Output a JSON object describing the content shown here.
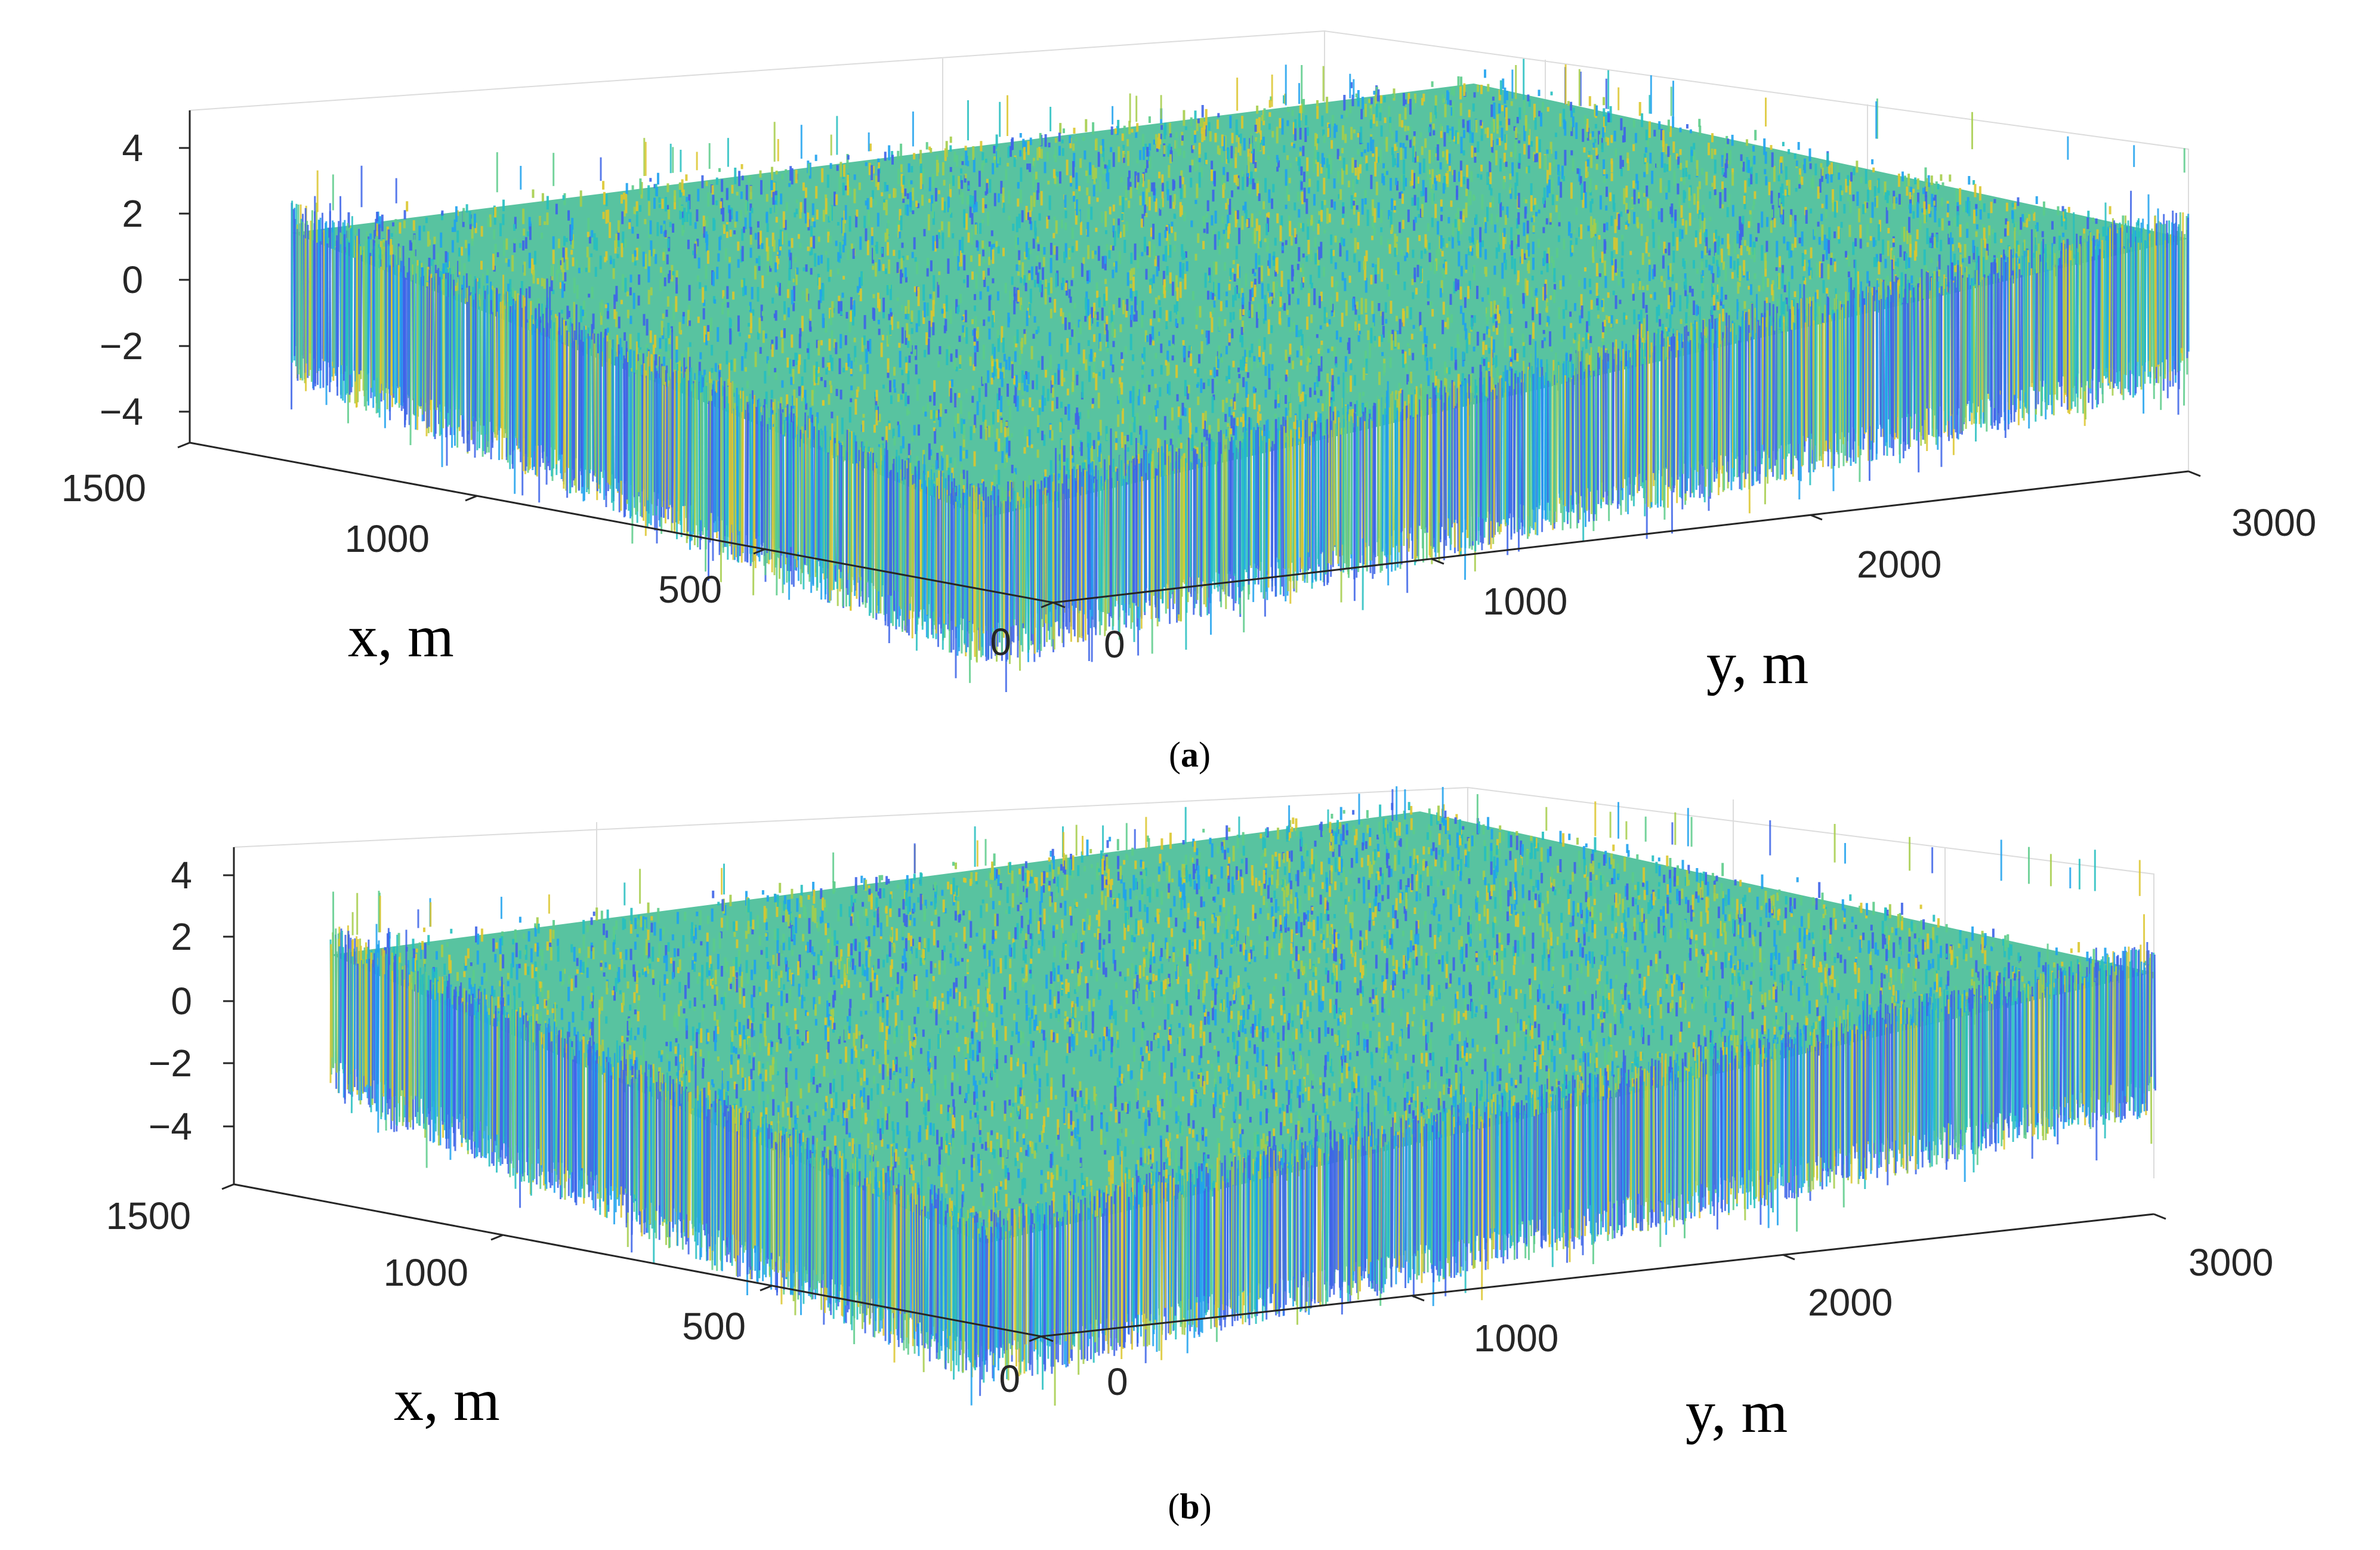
{
  "chart_data": [
    {
      "type": "surface",
      "panel_label": "a",
      "xlabel": "x, m",
      "ylabel": "y, m",
      "x_ticks": [
        "1500",
        "1000",
        "500",
        "0"
      ],
      "y_ticks": [
        "0",
        "1000",
        "2000",
        "3000"
      ],
      "z_ticks": [
        "4",
        "2",
        "0",
        "−2",
        "−4"
      ],
      "xlim": [
        0,
        1500
      ],
      "ylim": [
        0,
        3000
      ],
      "zlim": [
        -5,
        5
      ],
      "z_range_observed": [
        -4.5,
        4.5
      ],
      "grid": true,
      "colormap": [
        "#3e64e8",
        "#1fa2ee",
        "#26bfc0",
        "#5ccc8a",
        "#a5cd4a",
        "#dcc62e"
      ]
    },
    {
      "type": "surface",
      "panel_label": "b",
      "xlabel": "x, m",
      "ylabel": "y, m",
      "x_ticks": [
        "1500",
        "1000",
        "500",
        "0"
      ],
      "y_ticks": [
        "0",
        "1000",
        "2000",
        "3000"
      ],
      "z_ticks": [
        "4",
        "2",
        "0",
        "−2",
        "−4"
      ],
      "xlim": [
        0,
        1500
      ],
      "ylim": [
        0,
        3000
      ],
      "zlim": [
        -5,
        5
      ],
      "z_range_observed": [
        -4.5,
        4.5
      ],
      "grid": true,
      "colormap": [
        "#3e64e8",
        "#1fa2ee",
        "#26bfc0",
        "#5ccc8a",
        "#a5cd4a",
        "#dcc62e"
      ]
    }
  ],
  "captions": [
    {
      "open": "(",
      "letter": "a",
      "close": ")"
    },
    {
      "open": "(",
      "letter": "b",
      "close": ")"
    }
  ]
}
